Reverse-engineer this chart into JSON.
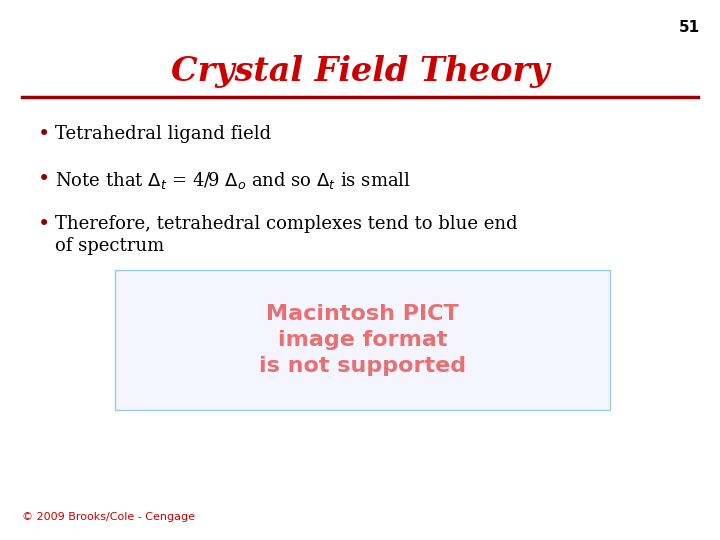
{
  "title": "Crystal Field Theory",
  "title_color": "#cc0000",
  "title_fontsize": 24,
  "slide_number": "51",
  "slide_number_color": "#000000",
  "slide_number_fontsize": 11,
  "line_color": "#990000",
  "background_color": "#ffffff",
  "bullet_color": "#000000",
  "bullet_fontsize": 13,
  "pict_box_edge_color": "#99ccdd",
  "pict_text": "Macintosh PICT\nimage format\nis not supported",
  "pict_text_color": "#e87070",
  "pict_text_fontsize": 16,
  "footer_text": "© 2009 Brooks/Cole - Cengage",
  "footer_color": "#cc0000",
  "footer_fontsize": 8
}
